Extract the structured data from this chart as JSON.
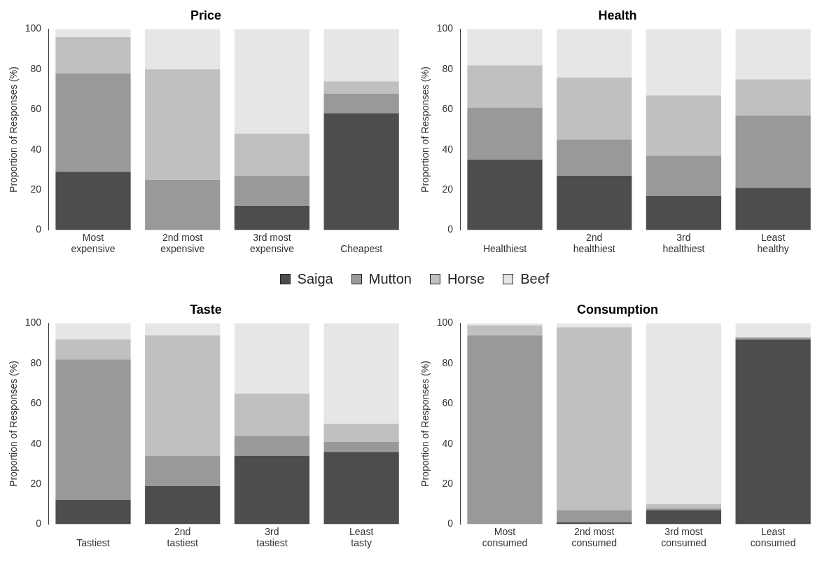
{
  "chart_data": [
    {
      "type": "bar",
      "title": "Price",
      "ylabel": "Proportion of Responses (%)",
      "stacked": true,
      "ylim": [
        0,
        100
      ],
      "yticks": [
        0,
        20,
        40,
        60,
        80,
        100
      ],
      "categories": [
        "Most expensive",
        "2nd most expensive",
        "3rd most expensive",
        "Cheapest"
      ],
      "series": [
        {
          "name": "Saiga",
          "color": "#4d4d4d",
          "values": [
            29,
            0,
            12,
            58
          ]
        },
        {
          "name": "Mutton",
          "color": "#999999",
          "values": [
            49,
            25,
            15,
            10
          ]
        },
        {
          "name": "Horse",
          "color": "#c0c0c0",
          "values": [
            18,
            55,
            21,
            6
          ]
        },
        {
          "name": "Beef",
          "color": "#e6e6e6",
          "values": [
            4,
            20,
            52,
            26
          ]
        }
      ],
      "legend": "bottom"
    },
    {
      "type": "bar",
      "title": "Health",
      "ylabel": "Proportion of Responses (%)",
      "stacked": true,
      "ylim": [
        0,
        100
      ],
      "yticks": [
        0,
        20,
        40,
        60,
        80,
        100
      ],
      "categories": [
        "Healthiest",
        "2nd healthiest",
        "3rd healthiest",
        "Least healthy"
      ],
      "series": [
        {
          "color": "#4d4d4d",
          "values": [
            35,
            27,
            17,
            21
          ]
        },
        {
          "color": "#999999",
          "values": [
            26,
            18,
            20,
            36
          ]
        },
        {
          "color": "#c0c0c0",
          "values": [
            21,
            31,
            30,
            18
          ]
        },
        {
          "color": "#e6e6e6",
          "values": [
            18,
            24,
            33,
            25
          ]
        }
      ]
    },
    {
      "type": "bar",
      "title": "Taste",
      "ylabel": "Proportion of Responses (%)",
      "stacked": true,
      "ylim": [
        0,
        100
      ],
      "yticks": [
        0,
        20,
        40,
        60,
        80,
        100
      ],
      "categories": [
        "Tastiest",
        "2nd tastiest",
        "3rd tastiest",
        "Least tasty"
      ],
      "series": [
        {
          "color": "#4d4d4d",
          "values": [
            12,
            19,
            34,
            36
          ]
        },
        {
          "color": "#999999",
          "values": [
            70,
            15,
            10,
            5
          ]
        },
        {
          "color": "#c0c0c0",
          "values": [
            10,
            60,
            21,
            9
          ]
        },
        {
          "color": "#e6e6e6",
          "values": [
            8,
            6,
            35,
            50
          ]
        }
      ]
    },
    {
      "type": "bar",
      "title": "Consumption",
      "ylabel": "Proportion of Responses (%)",
      "stacked": true,
      "ylim": [
        0,
        100
      ],
      "yticks": [
        0,
        20,
        40,
        60,
        80,
        100
      ],
      "categories": [
        "Most consumed",
        "2nd most consumed",
        "3rd most consumed",
        "Least consumed"
      ],
      "series": [
        {
          "color": "#4d4d4d",
          "values": [
            0,
            1,
            7,
            92
          ]
        },
        {
          "color": "#999999",
          "values": [
            94,
            6,
            1,
            1
          ]
        },
        {
          "color": "#c0c0c0",
          "values": [
            5,
            91,
            2,
            0
          ]
        },
        {
          "color": "#e6e6e6",
          "values": [
            1,
            2,
            90,
            7
          ]
        }
      ]
    }
  ]
}
